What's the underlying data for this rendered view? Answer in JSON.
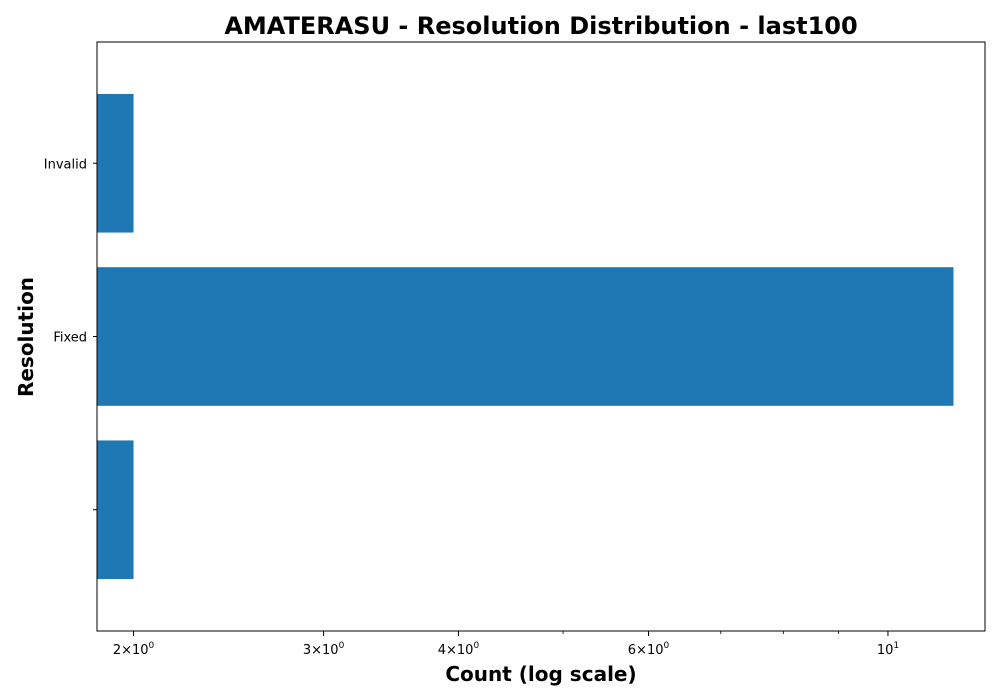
{
  "chart_data": {
    "type": "bar",
    "orientation": "horizontal",
    "title": "AMATERASU - Resolution Distribution - last100",
    "xlabel": "Count (log scale)",
    "ylabel": "Resolution",
    "x_scale": "log",
    "xlim": [
      1.85,
      12.3
    ],
    "categories": [
      "",
      "Fixed",
      "Invalid"
    ],
    "values": [
      2,
      11.5,
      2
    ],
    "bar_color": "#1f77b4",
    "grid": false,
    "legend": "none",
    "x_major_ticks": [
      {
        "value": 2,
        "mantissa": "2",
        "base": "10",
        "exponent": "0"
      },
      {
        "value": 3,
        "mantissa": "3",
        "base": "10",
        "exponent": "0"
      },
      {
        "value": 4,
        "mantissa": "4",
        "base": "10",
        "exponent": "0"
      },
      {
        "value": 6,
        "mantissa": "6",
        "base": "10",
        "exponent": "0"
      },
      {
        "value": 10,
        "mantissa": "",
        "base": "10",
        "exponent": "1"
      }
    ],
    "x_minor_ticks": [
      5,
      7,
      8,
      9
    ]
  }
}
